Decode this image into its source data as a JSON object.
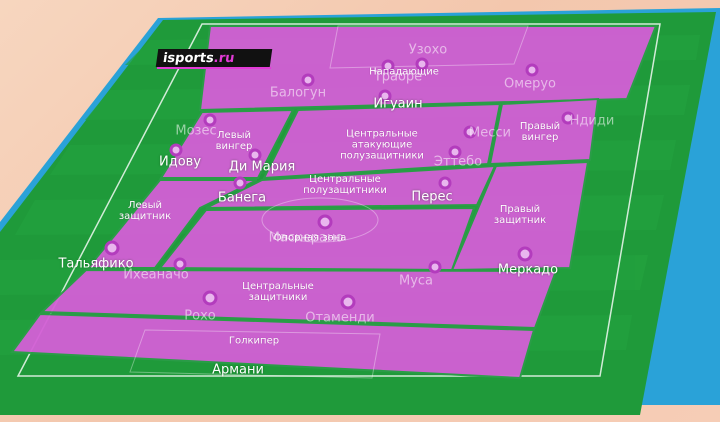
{
  "logo": {
    "main": "sports",
    "prefix": "i",
    "suffix": ".ru"
  },
  "colors": {
    "zone": "#d45fd6",
    "pitch": "#1f9a3a",
    "border": "#2ba0d6",
    "marker": "#b93fc0"
  },
  "zones": [
    {
      "id": "forwards",
      "label": "Нападающие"
    },
    {
      "id": "cam",
      "label": "Центральные\nатакующие\nполузащитники"
    },
    {
      "id": "lw",
      "label": "Левый\nвингер"
    },
    {
      "id": "rw",
      "label": "Правый\nвингер"
    },
    {
      "id": "cm",
      "label": "Центральные\nполузащитники"
    },
    {
      "id": "lb",
      "label": "Левый\nзащитник"
    },
    {
      "id": "rb",
      "label": "Правый\nзащитник"
    },
    {
      "id": "dm",
      "label": "Опорная зона"
    },
    {
      "id": "cb",
      "label": "Центральные\nзащитники"
    },
    {
      "id": "gk",
      "label": "Голкипер"
    }
  ],
  "players": [
    {
      "name": "Узохо"
    },
    {
      "name": "Траоре"
    },
    {
      "name": "Балогун"
    },
    {
      "name": "Омеруо"
    },
    {
      "name": "Игуаин"
    },
    {
      "name": "Мозес"
    },
    {
      "name": "Месси"
    },
    {
      "name": "Ндиди"
    },
    {
      "name": "Ди Мария"
    },
    {
      "name": "Идову"
    },
    {
      "name": "Эттебо"
    },
    {
      "name": "Банега"
    },
    {
      "name": "Перес"
    },
    {
      "name": "Маскерано"
    },
    {
      "name": "Тальяфико"
    },
    {
      "name": "Ихеаначо"
    },
    {
      "name": "Муса"
    },
    {
      "name": "Меркадо"
    },
    {
      "name": "Рохо"
    },
    {
      "name": "Отаменди"
    },
    {
      "name": "Армани"
    }
  ]
}
